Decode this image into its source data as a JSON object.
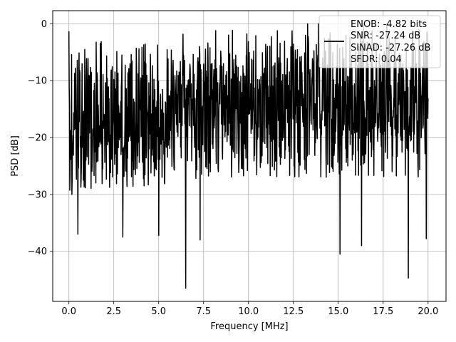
{
  "chart_data": {
    "type": "line",
    "title": "",
    "xlabel": "Frequency [MHz]",
    "ylabel": "PSD [dB]",
    "xlim": [
      -0.9,
      21.0
    ],
    "ylim": [
      -48.8,
      2.3
    ],
    "x_ticks": [
      0.0,
      2.5,
      5.0,
      7.5,
      10.0,
      12.5,
      15.0,
      17.5,
      20.0
    ],
    "x_tick_labels": [
      "0.0",
      "2.5",
      "5.0",
      "7.5",
      "10.0",
      "12.5",
      "15.0",
      "17.5",
      "20.0"
    ],
    "y_ticks": [
      0,
      -10,
      -20,
      -30,
      -40
    ],
    "y_tick_labels": [
      "0",
      "−10",
      "−20",
      "−30",
      "−40"
    ],
    "grid": true,
    "legend_position": "top-right",
    "series": [
      {
        "name": "ENOB: -4.82 bits\nSNR: -27.24 dB\nSINAD: -27.26 dB\nSFDR: 0.04",
        "color": "#000000",
        "description_points": {
          "x_range": [
            0.0,
            20.0
          ],
          "num_points": 1200,
          "notable_peaks": [
            {
              "x": 0.0,
              "y": -1.3
            },
            {
              "x": 13.3,
              "y": 0.0
            },
            {
              "x": 13.9,
              "y": 0.0
            },
            {
              "x": 16.4,
              "y": 0.0
            },
            {
              "x": 17.7,
              "y": 0.0
            },
            {
              "x": 19.5,
              "y": -1.0
            }
          ],
          "notable_dips": [
            {
              "x": 0.5,
              "y": -37.0
            },
            {
              "x": 3.0,
              "y": -37.5
            },
            {
              "x": 5.0,
              "y": -37.2
            },
            {
              "x": 6.5,
              "y": -46.5
            },
            {
              "x": 7.3,
              "y": -38.0
            },
            {
              "x": 15.1,
              "y": -40.5
            },
            {
              "x": 16.3,
              "y": -39.0
            },
            {
              "x": 18.9,
              "y": -44.7
            },
            {
              "x": 19.9,
              "y": -37.8
            }
          ]
        }
      }
    ],
    "legend_lines": [
      "ENOB: -4.82 bits",
      "SNR: -27.24 dB",
      "SINAD: -27.26 dB",
      "SFDR: 0.04"
    ]
  },
  "colors": {
    "line": "#000000",
    "grid": "#b0b0b0",
    "axes": "#000000",
    "legend_border": "#cccccc",
    "legend_bg": "#ffffff"
  }
}
